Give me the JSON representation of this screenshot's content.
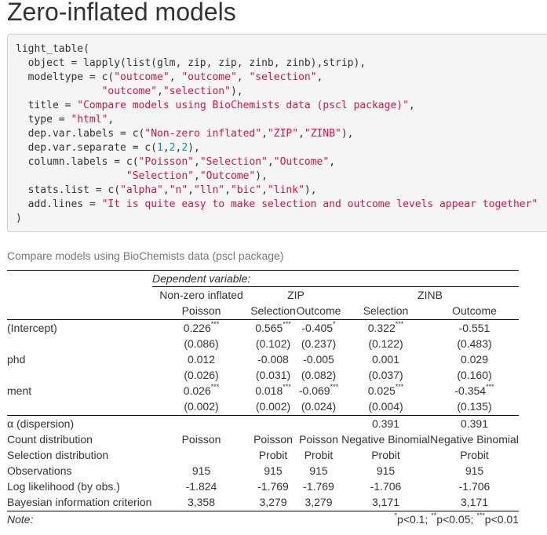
{
  "page_title": "Zero-inflated models",
  "code_lines": [
    [
      {
        "t": "light_table(",
        "k": "plain"
      }
    ],
    [
      {
        "t": "  object = lapply(list(glm, zip, zip, zinb, zinb),strip),",
        "k": "plain"
      }
    ],
    [
      {
        "t": "  modeltype = c(",
        "k": "plain"
      },
      {
        "t": "\"outcome\"",
        "k": "str"
      },
      {
        "t": ", ",
        "k": "plain"
      },
      {
        "t": "\"outcome\"",
        "k": "str"
      },
      {
        "t": ", ",
        "k": "plain"
      },
      {
        "t": "\"selection\"",
        "k": "str"
      },
      {
        "t": ",",
        "k": "plain"
      }
    ],
    [
      {
        "t": "              ",
        "k": "plain"
      },
      {
        "t": "\"outcome\"",
        "k": "str"
      },
      {
        "t": ",",
        "k": "plain"
      },
      {
        "t": "\"selection\"",
        "k": "str"
      },
      {
        "t": "),",
        "k": "plain"
      }
    ],
    [
      {
        "t": "  title = ",
        "k": "plain"
      },
      {
        "t": "\"Compare models using BioChemists data (pscl package)\"",
        "k": "str"
      },
      {
        "t": ",",
        "k": "plain"
      }
    ],
    [
      {
        "t": "  type = ",
        "k": "plain"
      },
      {
        "t": "\"html\"",
        "k": "str"
      },
      {
        "t": ",",
        "k": "plain"
      }
    ],
    [
      {
        "t": "  dep.var.labels = c(",
        "k": "plain"
      },
      {
        "t": "\"Non-zero inflated\"",
        "k": "str"
      },
      {
        "t": ",",
        "k": "plain"
      },
      {
        "t": "\"ZIP\"",
        "k": "str"
      },
      {
        "t": ",",
        "k": "plain"
      },
      {
        "t": "\"ZINB\"",
        "k": "str"
      },
      {
        "t": "),",
        "k": "plain"
      }
    ],
    [
      {
        "t": "  dep.var.separate = c(",
        "k": "plain"
      },
      {
        "t": "1",
        "k": "num"
      },
      {
        "t": ",",
        "k": "plain"
      },
      {
        "t": "2",
        "k": "num"
      },
      {
        "t": ",",
        "k": "plain"
      },
      {
        "t": "2",
        "k": "num"
      },
      {
        "t": "),",
        "k": "plain"
      }
    ],
    [
      {
        "t": "  column.labels = c(",
        "k": "plain"
      },
      {
        "t": "\"Poisson\"",
        "k": "str"
      },
      {
        "t": ",",
        "k": "plain"
      },
      {
        "t": "\"Selection\"",
        "k": "str"
      },
      {
        "t": ",",
        "k": "plain"
      },
      {
        "t": "\"Outcome\"",
        "k": "str"
      },
      {
        "t": ",",
        "k": "plain"
      }
    ],
    [
      {
        "t": "                  ",
        "k": "plain"
      },
      {
        "t": "\"Selection\"",
        "k": "str"
      },
      {
        "t": ",",
        "k": "plain"
      },
      {
        "t": "\"Outcome\"",
        "k": "str"
      },
      {
        "t": "),",
        "k": "plain"
      }
    ],
    [
      {
        "t": "  stats.list = c(",
        "k": "plain"
      },
      {
        "t": "\"alpha\"",
        "k": "str"
      },
      {
        "t": ",",
        "k": "plain"
      },
      {
        "t": "\"n\"",
        "k": "str"
      },
      {
        "t": ",",
        "k": "plain"
      },
      {
        "t": "\"lln\"",
        "k": "str"
      },
      {
        "t": ",",
        "k": "plain"
      },
      {
        "t": "\"bic\"",
        "k": "str"
      },
      {
        "t": ",",
        "k": "plain"
      },
      {
        "t": "\"link\"",
        "k": "str"
      },
      {
        "t": "),",
        "k": "plain"
      }
    ],
    [
      {
        "t": "  add.lines = ",
        "k": "plain"
      },
      {
        "t": "\"It is quite easy to make selection and outcome levels appear together\"",
        "k": "str"
      }
    ],
    [
      {
        "t": ")",
        "k": "plain"
      }
    ]
  ],
  "table": {
    "caption": "Compare models using BioChemists data (pscl package)",
    "dependent_variable_label": "Dependent variable:",
    "dep_var_groups": [
      "Non-zero inflated",
      "ZIP",
      "ZINB"
    ],
    "column_labels": [
      "Poisson",
      "Selection",
      "Outcome",
      "Selection",
      "Outcome"
    ],
    "coefficients": [
      {
        "name": "(Intercept)",
        "estimates": [
          {
            "v": "0.226",
            "s": "***"
          },
          {
            "v": "0.565",
            "s": "***"
          },
          {
            "v": "-0.405",
            "s": "*"
          },
          {
            "v": "0.322",
            "s": "***"
          },
          {
            "v": "-0.551",
            "s": ""
          }
        ],
        "se": [
          "(0.086)",
          "(0.102)",
          "(0.237)",
          "(0.122)",
          "(0.483)"
        ]
      },
      {
        "name": "phd",
        "estimates": [
          {
            "v": "0.012",
            "s": ""
          },
          {
            "v": "-0.008",
            "s": ""
          },
          {
            "v": "-0.005",
            "s": ""
          },
          {
            "v": "0.001",
            "s": ""
          },
          {
            "v": "0.029",
            "s": ""
          }
        ],
        "se": [
          "(0.026)",
          "(0.031)",
          "(0.082)",
          "(0.037)",
          "(0.160)"
        ]
      },
      {
        "name": "ment",
        "estimates": [
          {
            "v": "0.026",
            "s": "***"
          },
          {
            "v": "0.018",
            "s": "***"
          },
          {
            "v": "-0.069",
            "s": "***"
          },
          {
            "v": "0.025",
            "s": "***"
          },
          {
            "v": "-0.354",
            "s": "***"
          }
        ],
        "se": [
          "(0.002)",
          "(0.002)",
          "(0.024)",
          "(0.004)",
          "(0.135)"
        ]
      }
    ],
    "stats": [
      {
        "name": "α (dispersion)",
        "values": [
          "",
          "",
          "",
          "0.391",
          "0.391"
        ]
      },
      {
        "name": "Count distribution",
        "values": [
          "Poisson",
          "Poisson",
          "Poisson",
          "Negative Binomial",
          "Negative Binomial"
        ]
      },
      {
        "name": "Selection distribution",
        "values": [
          "",
          "Probit",
          "Probit",
          "Probit",
          "Probit"
        ]
      },
      {
        "name": "Observations",
        "values": [
          "915",
          "915",
          "915",
          "915",
          "915"
        ]
      },
      {
        "name": "Log likelihood (by obs.)",
        "values": [
          "-1.824",
          "-1.769",
          "-1.769",
          "-1.706",
          "-1.706"
        ]
      },
      {
        "name": "Bayesian information criterion",
        "values": [
          "3,358",
          "3,279",
          "3,279",
          "3,171",
          "3,171"
        ]
      }
    ],
    "note_label": "Note:",
    "note_items": [
      {
        "stars": "*",
        "text": "p<0.1; "
      },
      {
        "stars": "**",
        "text": "p<0.05; "
      },
      {
        "stars": "***",
        "text": "p<0.01"
      }
    ]
  }
}
